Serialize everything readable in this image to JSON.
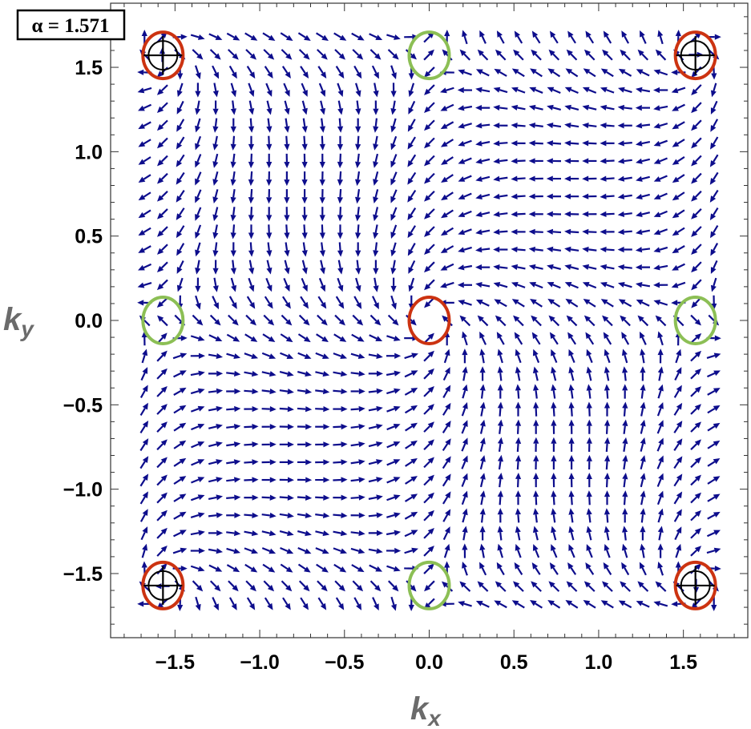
{
  "chart_data": {
    "type": "vector_field",
    "annotation": "α = 1.571",
    "alpha": 1.571,
    "xlabel": "k",
    "xlabel_sub": "x",
    "ylabel": "k",
    "ylabel_sub": "y",
    "xlim": [
      -1.88,
      1.88
    ],
    "ylim": [
      -1.88,
      1.88
    ],
    "xticks": [
      -1.5,
      -1.0,
      -0.5,
      0.0,
      0.5,
      1.0,
      1.5
    ],
    "xtick_labels": [
      "−1.5",
      "−1.0",
      "−0.5",
      "0.0",
      "0.5",
      "1.0",
      "1.5"
    ],
    "yticks": [
      1.5,
      1.0,
      0.5,
      0.0,
      -0.5,
      -1.0,
      -1.5
    ],
    "ytick_labels": [
      "1.5",
      "1.0",
      "0.5",
      "0.0",
      "−0.5",
      "−1.0",
      "−1.5"
    ],
    "field": {
      "grid_range": [
        -1.68,
        1.68
      ],
      "grid_points": 33,
      "arrow_color": "#0d0d8c"
    },
    "markers": [
      {
        "kx": -1.571,
        "ky": 1.571,
        "ring": "red",
        "cross": true
      },
      {
        "kx": 1.571,
        "ky": 1.571,
        "ring": "red",
        "cross": true
      },
      {
        "kx": -1.571,
        "ky": -1.571,
        "ring": "red",
        "cross": true
      },
      {
        "kx": 1.571,
        "ky": -1.571,
        "ring": "red",
        "cross": true
      },
      {
        "kx": 0.0,
        "ky": 0.0,
        "ring": "red",
        "cross": false
      },
      {
        "kx": 0.0,
        "ky": 1.571,
        "ring": "green",
        "cross": false
      },
      {
        "kx": 0.0,
        "ky": -1.571,
        "ring": "green",
        "cross": false
      },
      {
        "kx": -1.571,
        "ky": 0.0,
        "ring": "green",
        "cross": false
      },
      {
        "kx": 1.571,
        "ky": 0.0,
        "ring": "green",
        "cross": false
      }
    ],
    "colors": {
      "red_ring": "#cc3311",
      "green_ring": "#8cbf55",
      "cross": "#000000"
    },
    "grid": false
  }
}
